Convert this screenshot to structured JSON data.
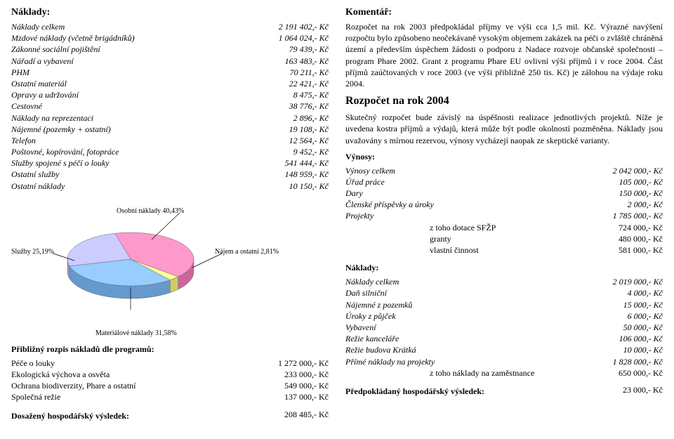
{
  "left": {
    "naklady_header": "Náklady:",
    "costs": [
      {
        "label": "Náklady celkem",
        "value": "2 191 402,- Kč"
      },
      {
        "label": "Mzdové náklady (včetně brigádníků)",
        "value": "1 064 024,- Kč"
      },
      {
        "label": "Zákonné sociální pojištění",
        "value": "79 439,- Kč"
      },
      {
        "label": "Nářadí a vybavení",
        "value": "163 483,- Kč"
      },
      {
        "label": "PHM",
        "value": "70 211,- Kč"
      },
      {
        "label": "Ostatní materiál",
        "value": "22 421,- Kč"
      },
      {
        "label": "Opravy a udržování",
        "value": "8 475,- Kč"
      },
      {
        "label": "Cestovné",
        "value": "38 776,- Kč"
      },
      {
        "label": "Náklady na reprezentaci",
        "value": "2 896,- Kč"
      },
      {
        "label": "Nájemné (pozemky + ostatní)",
        "value": "19 108,- Kč"
      },
      {
        "label": "Telefon",
        "value": "12 564,- Kč"
      },
      {
        "label": "Poštovné, kopírování, fotopráce",
        "value": "9 452,- Kč"
      },
      {
        "label": "Služby spojené s péčí o louky",
        "value": "541 444,- Kč"
      },
      {
        "label": "Ostatní služby",
        "value": "148 959,- Kč"
      },
      {
        "label": "Ostatní náklady",
        "value": "10 150,- Kč"
      }
    ],
    "chart": {
      "type": "pie",
      "background_color": "#ffffff",
      "label_fontsize": 10,
      "slices": [
        {
          "name": "Osobní náklady",
          "pct": 40.43,
          "label": "Osobní náklady 40,43%",
          "color_top": "#ff99cc",
          "color_side": "#cc6699"
        },
        {
          "name": "Nájem a ostatní",
          "pct": 2.81,
          "label": "Nájem a ostatní 2,81%",
          "color_top": "#ffff99",
          "color_side": "#cccc66"
        },
        {
          "name": "Materiálové náklady",
          "pct": 31.58,
          "label": "Materiálové náklady 31,58%",
          "color_top": "#99ccff",
          "color_side": "#6699cc"
        },
        {
          "name": "Služby",
          "pct": 25.19,
          "label": "Služby 25,19%",
          "color_top": "#ccccff",
          "color_side": "#9999cc"
        }
      ],
      "aspect": "3d-tilted",
      "tilt_deg": 55
    },
    "mat_label": "Materiálové náklady 31,58%",
    "programs_header": "Přibližný rozpis nákladů dle programů:",
    "programs": [
      {
        "label": "Péče o louky",
        "value": "1 272 000,- Kč"
      },
      {
        "label": "Ekologická výchova a osvěta",
        "value": "233 000,- Kč"
      },
      {
        "label": "Ochrana biodiverzity, Phare a ostatní",
        "value": "549 000,- Kč"
      },
      {
        "label": "Společná režie",
        "value": "137 000,- Kč"
      }
    ],
    "result_label": "Dosažený hospodářský výsledek:",
    "result_value": "208 485,- Kč"
  },
  "right": {
    "komentar_header": "Komentář:",
    "komentar_text": "Rozpočet na rok 2003 předpokládal příjmy ve výši cca 1,5 mil. Kč. Výrazné navýšení rozpočtu bylo způsobeno neočekávaně vysokým objemem zakázek na péči o zvláště chráněná území a především úspěchem žádosti o podporu z Nadace rozvoje občanské společnosti – program Phare 2002. Grant z programu Phare EU ovlivní výši příjmů i v roce 2004. Část příjmů zaúčtovaných v roce 2003 (ve výši přibližně 250 tis. Kč) je zálohou na výdaje roku 2004.",
    "rozpocet_header": "Rozpočet na rok 2004",
    "rozpocet_text": "Skutečný rozpočet bude závislý na úspěšnosti realizace jednotlivých projektů. Níže je uvedena kostra příjmů a výdajů, která může být podle okolností pozměněna. Náklady jsou uvažovány s mírnou rezervou, výnosy vycházejí naopak ze skeptické varianty.",
    "vynosy_header": "Výnosy:",
    "vynosy": [
      {
        "label": "Výnosy celkem",
        "value": "2 042 000,- Kč"
      },
      {
        "label": "Úřad práce",
        "value": "105 000,- Kč"
      },
      {
        "label": "Dary",
        "value": "150 000,- Kč"
      },
      {
        "label": "Členské příspěvky a úroky",
        "value": "2 000,- Kč"
      },
      {
        "label": "Projekty",
        "value": "1 785 000,- Kč"
      }
    ],
    "vynosy_sub": [
      {
        "label": "z toho dotace SFŽP",
        "value": "724 000,- Kč"
      },
      {
        "label": "granty",
        "value": "480 000,- Kč"
      },
      {
        "label": "vlastní činnost",
        "value": "581 000,- Kč"
      }
    ],
    "naklady_header": "Náklady:",
    "naklady": [
      {
        "label": "Náklady celkem",
        "value": "2 019 000,- Kč"
      },
      {
        "label": "Daň silniční",
        "value": "4 000,- Kč"
      },
      {
        "label": "Nájemné z pozemků",
        "value": "15 000,- Kč"
      },
      {
        "label": "Úroky z půjček",
        "value": "6 000,- Kč"
      },
      {
        "label": "Vybavení",
        "value": "50 000,- Kč"
      },
      {
        "label": "Režie kanceláře",
        "value": "106 000,- Kč"
      },
      {
        "label": "Režie budova Krátká",
        "value": "10 000,- Kč"
      },
      {
        "label": "Přímé náklady na projekty",
        "value": "1 828 000,- Kč"
      }
    ],
    "naklady_sub": [
      {
        "label": "z toho náklady na zaměstnance",
        "value": "650 000,- Kč"
      }
    ],
    "predpoklad_label": "Předpokládaný hospodářský výsledek:",
    "predpoklad_value": "23 000,- Kč"
  }
}
